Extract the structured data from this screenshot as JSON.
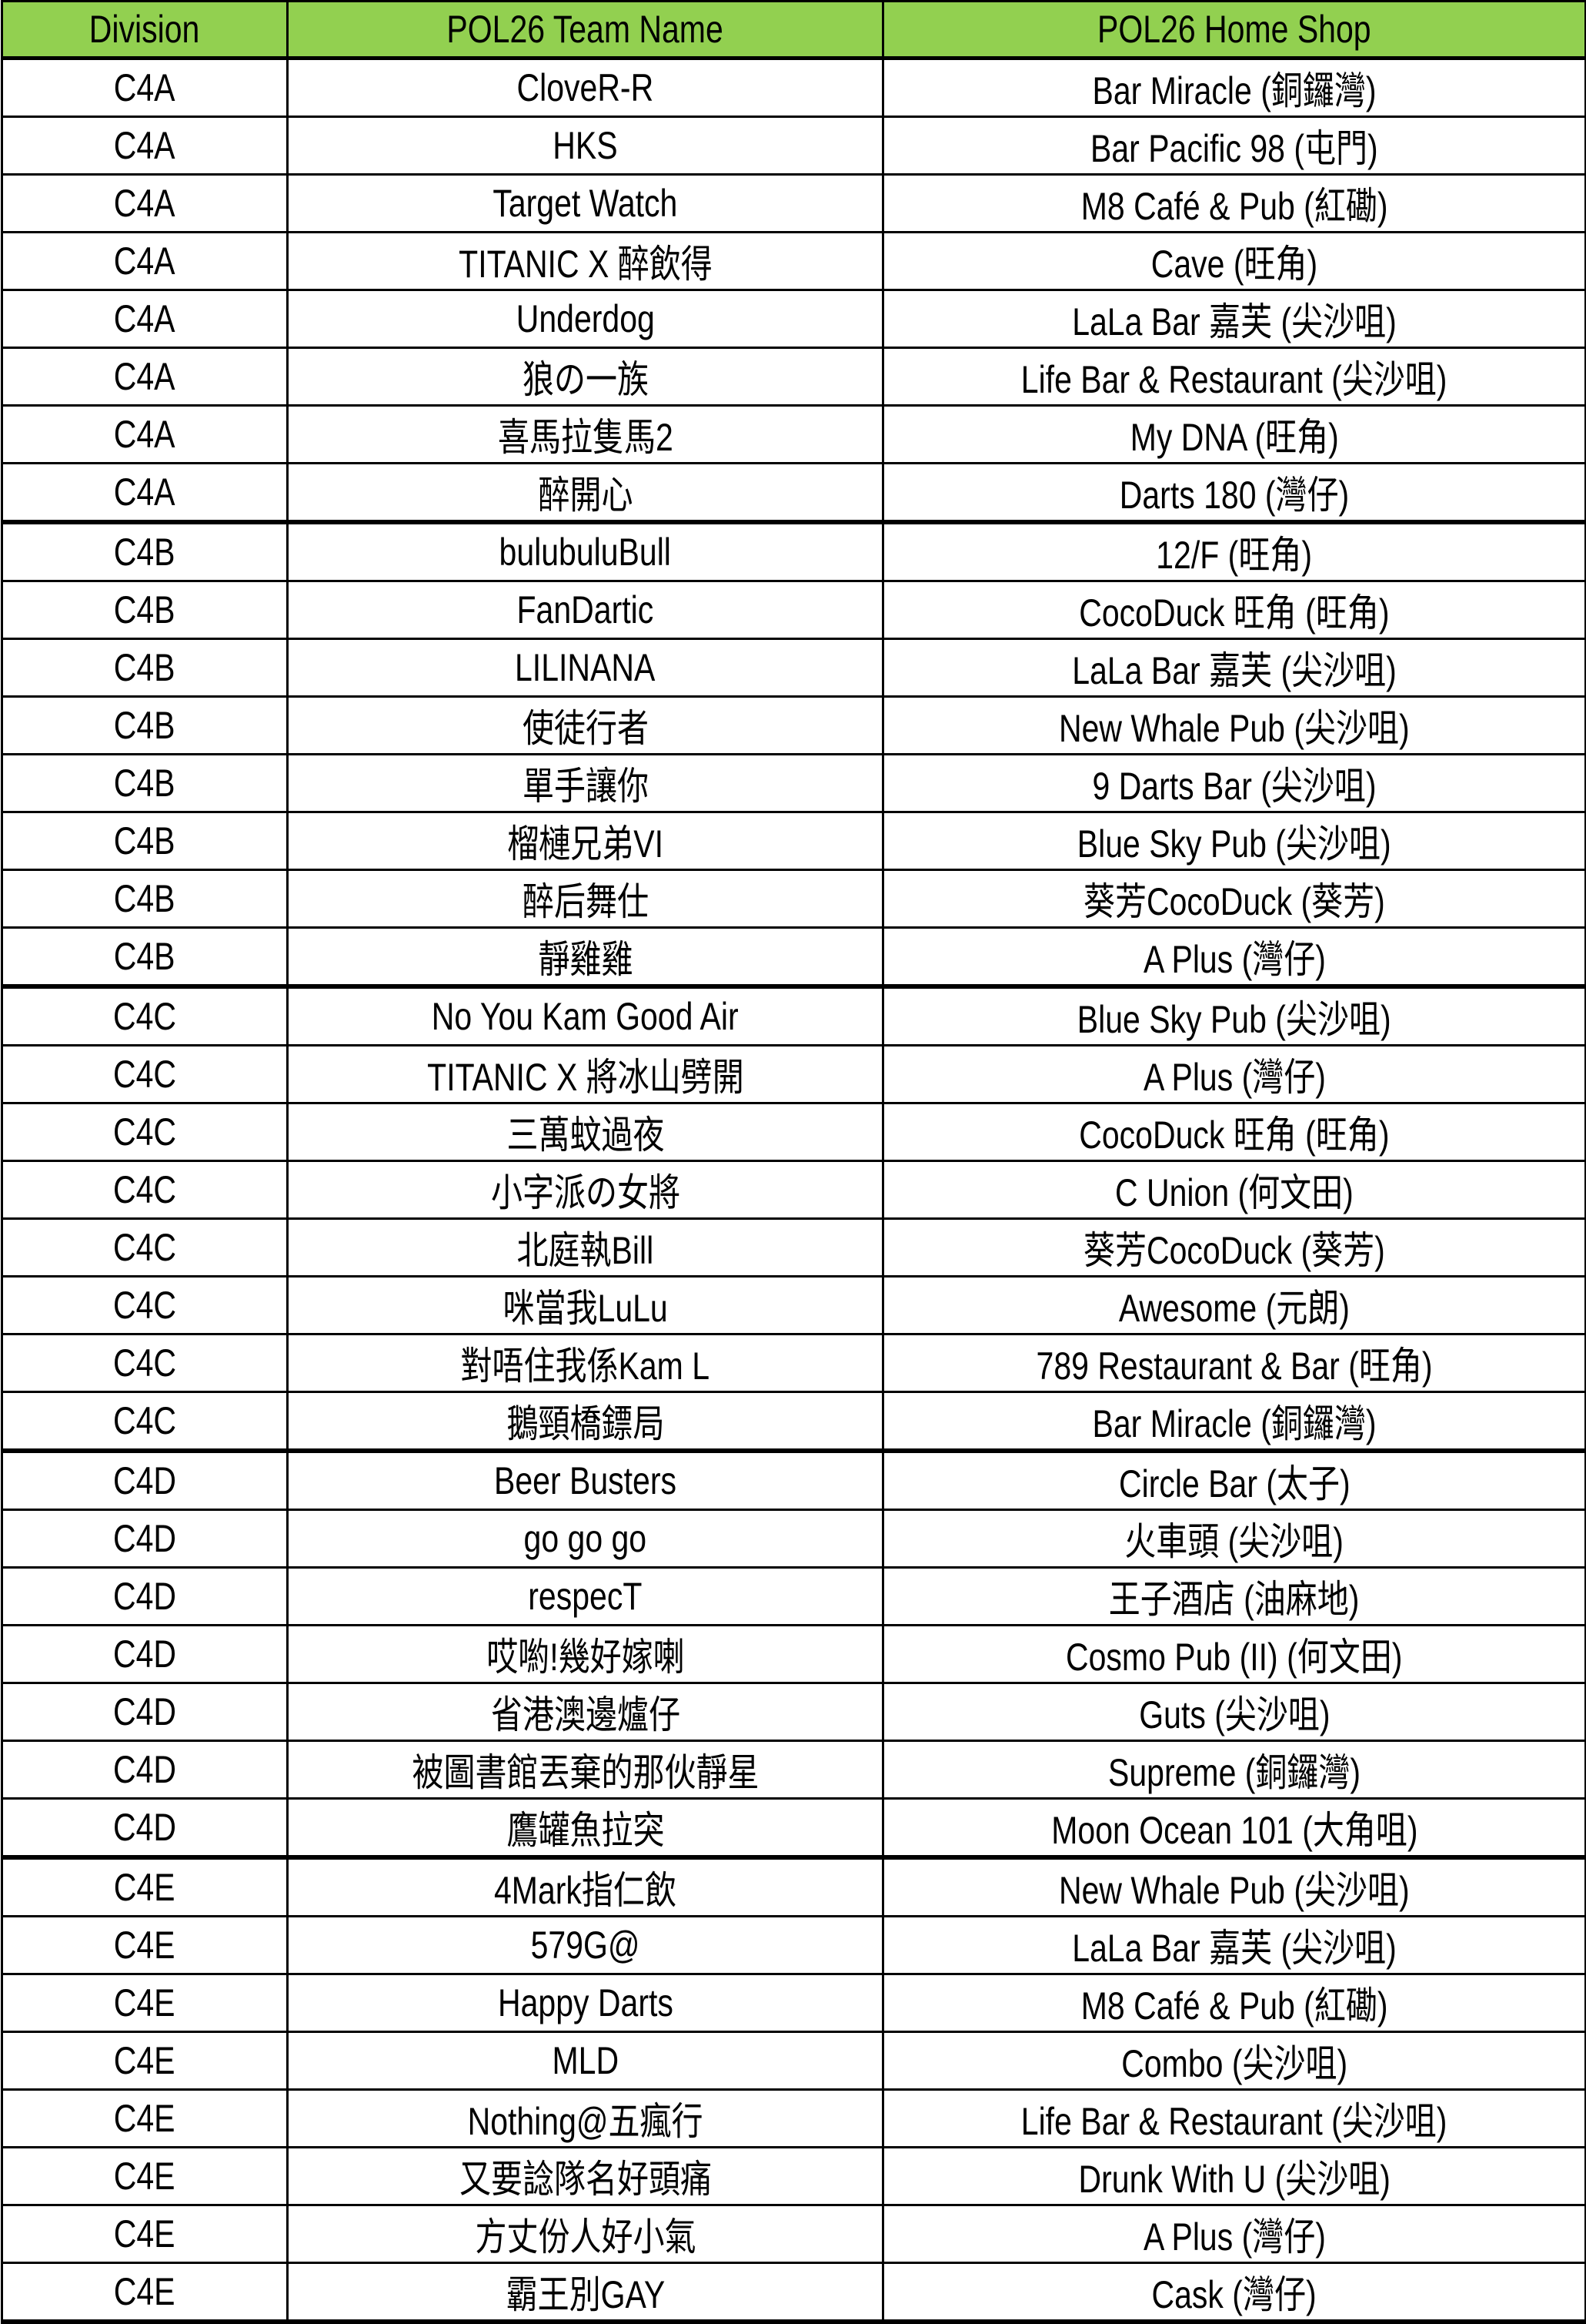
{
  "header": {
    "division": "Division",
    "team": "POL26 Team Name",
    "shop": "POL26 Home Shop"
  },
  "header_color": "#92D050",
  "rows": [
    {
      "division": "C4A",
      "team": "CloveR-R",
      "shop": "Bar Miracle (銅鑼灣)"
    },
    {
      "division": "C4A",
      "team": "HKS",
      "shop": "Bar Pacific 98 (屯門)"
    },
    {
      "division": "C4A",
      "team": "Target Watch",
      "shop": "M8 Café & Pub (紅磡)"
    },
    {
      "division": "C4A",
      "team": "TITANIC X 醉飲得",
      "shop": "Cave (旺角)"
    },
    {
      "division": "C4A",
      "team": "Underdog",
      "shop": "LaLa Bar 嘉芙 (尖沙咀)"
    },
    {
      "division": "C4A",
      "team": "狼の一族",
      "shop": "Life Bar & Restaurant (尖沙咀)"
    },
    {
      "division": "C4A",
      "team": "喜馬拉隻馬2",
      "shop": "My DNA (旺角)"
    },
    {
      "division": "C4A",
      "team": "醉開心",
      "shop": "Darts 180 (灣仔)"
    },
    {
      "division": "C4B",
      "team": "bulubuluBull",
      "shop": "12/F (旺角)"
    },
    {
      "division": "C4B",
      "team": "FanDartic",
      "shop": "CocoDuck 旺角 (旺角)"
    },
    {
      "division": "C4B",
      "team": "LILINANA",
      "shop": "LaLa Bar 嘉芙 (尖沙咀)"
    },
    {
      "division": "C4B",
      "team": "使徒行者",
      "shop": "New Whale Pub (尖沙咀)"
    },
    {
      "division": "C4B",
      "team": "單手讓你",
      "shop": "9 Darts Bar (尖沙咀)"
    },
    {
      "division": "C4B",
      "team": "榴槤兄弟VI",
      "shop": "Blue Sky Pub (尖沙咀)"
    },
    {
      "division": "C4B",
      "team": "醉后舞仕",
      "shop": "葵芳CocoDuck (葵芳)"
    },
    {
      "division": "C4B",
      "team": "靜雞雞",
      "shop": "A Plus (灣仔)"
    },
    {
      "division": "C4C",
      "team": "No You Kam Good Air",
      "shop": "Blue Sky Pub (尖沙咀)"
    },
    {
      "division": "C4C",
      "team": "TITANIC X 將冰山劈開",
      "shop": "A Plus (灣仔)"
    },
    {
      "division": "C4C",
      "team": "三萬蚊過夜",
      "shop": "CocoDuck 旺角 (旺角)"
    },
    {
      "division": "C4C",
      "team": "小字派の女將",
      "shop": "C Union (何文田)"
    },
    {
      "division": "C4C",
      "team": "北庭執Bill",
      "shop": "葵芳CocoDuck (葵芳)"
    },
    {
      "division": "C4C",
      "team": "咪當我LuLu",
      "shop": "Awesome (元朗)"
    },
    {
      "division": "C4C",
      "team": "對唔住我係Kam L",
      "shop": "789 Restaurant & Bar (旺角)"
    },
    {
      "division": "C4C",
      "team": "鵝頸橋鏢局",
      "shop": "Bar Miracle (銅鑼灣)"
    },
    {
      "division": "C4D",
      "team": "Beer Busters",
      "shop": "Circle Bar (太子)"
    },
    {
      "division": "C4D",
      "team": "go go go",
      "shop": "火車頭 (尖沙咀)"
    },
    {
      "division": "C4D",
      "team": "respecT",
      "shop": "王子酒店 (油麻地)"
    },
    {
      "division": "C4D",
      "team": "哎喲!幾好嫁喇",
      "shop": "Cosmo Pub (II) (何文田)"
    },
    {
      "division": "C4D",
      "team": "省港澳邊爐仔",
      "shop": "Guts (尖沙咀)"
    },
    {
      "division": "C4D",
      "team": "被圖書館丟棄的那伙靜星",
      "shop": "Supreme (銅鑼灣)"
    },
    {
      "division": "C4D",
      "team": "鷹罐魚拉突",
      "shop": "Moon Ocean 101 (大角咀)"
    },
    {
      "division": "C4E",
      "team": "4Mark指仁飲",
      "shop": "New Whale Pub (尖沙咀)"
    },
    {
      "division": "C4E",
      "team": "579G@",
      "shop": "LaLa Bar 嘉芙 (尖沙咀)"
    },
    {
      "division": "C4E",
      "team": "Happy Darts",
      "shop": "M8 Café & Pub (紅磡)"
    },
    {
      "division": "C4E",
      "team": "MLD",
      "shop": "Combo (尖沙咀)"
    },
    {
      "division": "C4E",
      "team": "Nothing@五瘋行",
      "shop": "Life Bar & Restaurant (尖沙咀)"
    },
    {
      "division": "C4E",
      "team": "又要諗隊名好頭痛",
      "shop": "Drunk With U (尖沙咀)"
    },
    {
      "division": "C4E",
      "team": "方丈份人好小氣",
      "shop": "A Plus (灣仔)"
    },
    {
      "division": "C4E",
      "team": "霸王別GAY",
      "shop": "Cask (灣仔)"
    }
  ]
}
